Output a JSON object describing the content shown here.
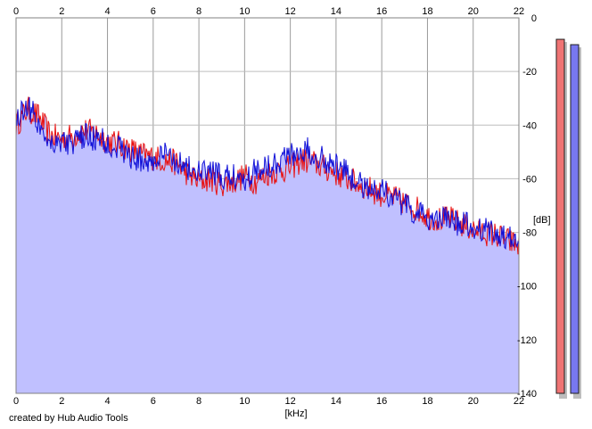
{
  "footer_text": "created by Hub Audio Tools",
  "chart_data": {
    "type": "area",
    "title": "",
    "xlabel": "[kHz]",
    "ylabel": "[dB]",
    "xlim": [
      0,
      22
    ],
    "ylim": [
      -140,
      0
    ],
    "x_ticks": [
      "0",
      "2",
      "4",
      "6",
      "8",
      "10",
      "12",
      "14",
      "16",
      "18",
      "20",
      "22"
    ],
    "y_ticks": [
      "0",
      "-20",
      "-40",
      "-60",
      "-80",
      "-100",
      "-120",
      "-140"
    ],
    "grid": true,
    "x": [
      0.0,
      0.5,
      1.0,
      1.5,
      2.0,
      2.5,
      3.0,
      3.5,
      4.0,
      4.5,
      5.0,
      5.5,
      6.0,
      6.5,
      7.0,
      7.5,
      8.0,
      8.5,
      9.0,
      9.5,
      10.0,
      10.5,
      11.0,
      11.5,
      12.0,
      12.5,
      13.0,
      13.5,
      14.0,
      14.5,
      15.0,
      15.5,
      16.0,
      16.5,
      17.0,
      17.5,
      18.0,
      18.5,
      19.0,
      19.5,
      20.0,
      20.5,
      21.0,
      21.5,
      22.0
    ],
    "series": [
      {
        "values": [
          -40,
          -34,
          -37,
          -44,
          -45,
          -44,
          -42,
          -43,
          -46,
          -47,
          -49,
          -51,
          -52,
          -53,
          -54,
          -58,
          -61,
          -60,
          -62,
          -61,
          -59,
          -61,
          -58,
          -57,
          -56,
          -53,
          -54,
          -56,
          -58,
          -60,
          -62,
          -64,
          -66,
          -67,
          -69,
          -71,
          -74,
          -75,
          -75,
          -77,
          -79,
          -80,
          -81,
          -83,
          -85
        ],
        "color": "#e81010"
      },
      {
        "values": [
          -38,
          -32,
          -40,
          -46,
          -46,
          -47,
          -44,
          -45,
          -47,
          -48,
          -52,
          -53,
          -54,
          -51,
          -53,
          -56,
          -58,
          -57,
          -60,
          -59,
          -60,
          -56,
          -55,
          -53,
          -51,
          -49,
          -50,
          -53,
          -55,
          -58,
          -62,
          -63,
          -64,
          -67,
          -70,
          -73,
          -75,
          -74,
          -76,
          -77,
          -78,
          -79,
          -80,
          -82,
          -84
        ],
        "color": "#1010d8"
      }
    ],
    "fill_color": "#c0c0ff",
    "level_meters": [
      {
        "color": "#ef7474",
        "value": -8
      },
      {
        "color": "#7878f0",
        "value": -10
      }
    ]
  }
}
